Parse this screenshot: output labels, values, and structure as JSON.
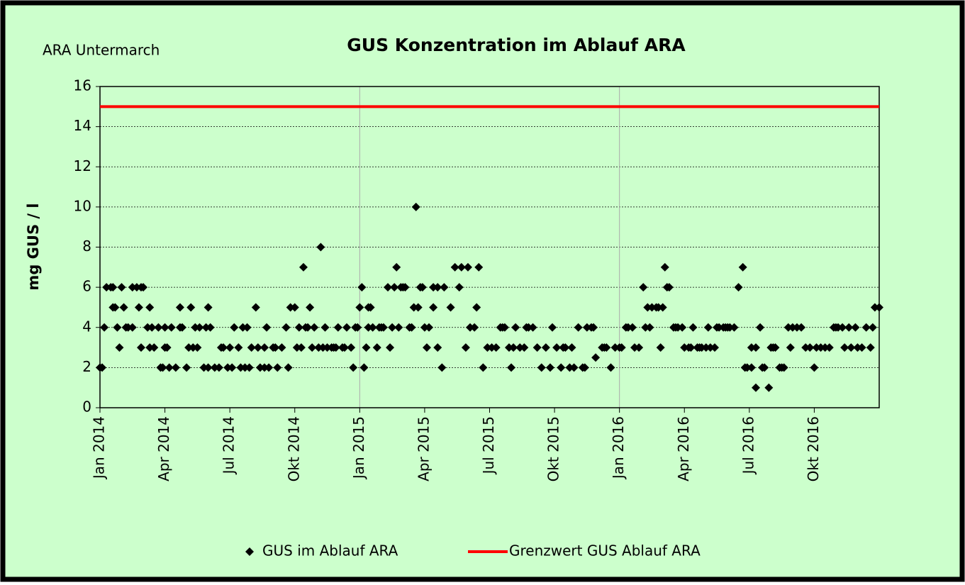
{
  "chart_data": {
    "type": "scatter",
    "title": "GUS Konzentration im Ablauf ARA",
    "subtitle": "ARA Untermarch",
    "y_label": "mg GUS / l",
    "xlim": [
      0,
      36
    ],
    "xticks": [
      {
        "value": 0,
        "label": "Jan 2014"
      },
      {
        "value": 3,
        "label": "Apr 2014"
      },
      {
        "value": 6,
        "label": "Jul 2014"
      },
      {
        "value": 9,
        "label": "Okt 2014"
      },
      {
        "value": 12,
        "label": "Jan 2015"
      },
      {
        "value": 15,
        "label": "Apr 2015"
      },
      {
        "value": 18,
        "label": "Jul 2015"
      },
      {
        "value": 21,
        "label": "Okt 2015"
      },
      {
        "value": 24,
        "label": "Jan 2016"
      },
      {
        "value": 27,
        "label": "Apr 2016"
      },
      {
        "value": 30,
        "label": "Jul 2016"
      },
      {
        "value": 33,
        "label": "Okt 2016"
      }
    ],
    "x_gridlines": [
      12,
      24
    ],
    "ylim": [
      0,
      16
    ],
    "yticks": [
      0,
      2,
      4,
      6,
      8,
      10,
      12,
      14,
      16
    ],
    "grid": true,
    "legend": "bottom",
    "series": [
      {
        "name": "GUS im Ablauf ARA",
        "color": "#000000",
        "marker": "diamond",
        "x": [
          0,
          0.1,
          0.2,
          0.3,
          0.5,
          0.6,
          0.6,
          0.7,
          0.8,
          0.9,
          1.0,
          1.1,
          1.2,
          1.3,
          1.5,
          1.5,
          1.7,
          1.8,
          1.9,
          1.9,
          2.0,
          2.2,
          2.3,
          2.3,
          2.4,
          2.5,
          2.7,
          2.8,
          2.9,
          3.0,
          3.0,
          3.1,
          3.2,
          3.3,
          3.5,
          3.7,
          3.7,
          3.8,
          4.0,
          4.1,
          4.2,
          4.3,
          4.4,
          4.5,
          4.6,
          4.8,
          4.9,
          5.0,
          5.0,
          5.1,
          5.3,
          5.5,
          5.6,
          5.7,
          5.9,
          6.0,
          6.1,
          6.2,
          6.4,
          6.5,
          6.6,
          6.7,
          6.8,
          6.9,
          7.0,
          7.2,
          7.3,
          7.4,
          7.6,
          7.6,
          7.7,
          7.8,
          8.0,
          8.1,
          8.2,
          8.4,
          8.6,
          8.7,
          8.8,
          9.0,
          9.1,
          9.2,
          9.3,
          9.4,
          9.5,
          9.6,
          9.7,
          9.8,
          9.9,
          10.1,
          10.2,
          10.3,
          10.4,
          10.5,
          10.7,
          10.8,
          10.9,
          11.0,
          11.2,
          11.3,
          11.4,
          11.6,
          11.7,
          11.8,
          11.9,
          12.0,
          12.1,
          12.2,
          12.3,
          12.4,
          12.4,
          12.5,
          12.6,
          12.8,
          12.9,
          13.0,
          13.1,
          13.3,
          13.4,
          13.5,
          13.6,
          13.7,
          13.8,
          13.9,
          14.0,
          14.1,
          14.3,
          14.4,
          14.5,
          14.6,
          14.7,
          14.8,
          14.9,
          15.0,
          15.1,
          15.2,
          15.4,
          15.4,
          15.6,
          15.6,
          15.8,
          15.9,
          16.2,
          16.4,
          16.6,
          16.7,
          16.9,
          17.0,
          17.1,
          17.3,
          17.4,
          17.5,
          17.7,
          17.9,
          18.1,
          18.3,
          18.5,
          18.6,
          18.7,
          18.9,
          19.0,
          19.1,
          19.2,
          19.4,
          19.6,
          19.7,
          19.8,
          20.0,
          20.2,
          20.4,
          20.6,
          20.8,
          20.9,
          21.1,
          21.3,
          21.4,
          21.5,
          21.7,
          21.8,
          21.9,
          22.1,
          22.3,
          22.4,
          22.5,
          22.7,
          22.8,
          22.9,
          23.2,
          23.3,
          23.4,
          23.6,
          23.8,
          24.0,
          24.1,
          24.3,
          24.4,
          24.6,
          24.7,
          24.9,
          25.1,
          25.2,
          25.3,
          25.4,
          25.5,
          25.7,
          25.8,
          25.9,
          26.0,
          26.1,
          26.2,
          26.3,
          26.5,
          26.6,
          26.7,
          26.9,
          27.0,
          27.2,
          27.3,
          27.4,
          27.6,
          27.7,
          27.8,
          28.0,
          28.1,
          28.2,
          28.4,
          28.5,
          28.6,
          28.8,
          28.9,
          29.0,
          29.1,
          29.3,
          29.5,
          29.7,
          29.8,
          29.9,
          30.1,
          30.1,
          30.3,
          30.3,
          30.5,
          30.6,
          30.7,
          30.9,
          31.0,
          31.1,
          31.2,
          31.4,
          31.5,
          31.6,
          31.8,
          31.9,
          32.0,
          32.2,
          32.4,
          32.6,
          32.8,
          33.0,
          33.1,
          33.3,
          33.5,
          33.7,
          33.9,
          34.0,
          34.1,
          34.3,
          34.4,
          34.6,
          34.7,
          34.9,
          35.0,
          35.2,
          35.4,
          35.6,
          35.7,
          35.8,
          36.0
        ],
        "values": [
          2,
          2,
          4,
          6,
          6,
          5,
          6,
          5,
          4,
          3,
          6,
          5,
          4,
          4,
          6,
          4,
          6,
          5,
          6,
          3,
          6,
          4,
          5,
          3,
          4,
          3,
          4,
          2,
          2,
          3,
          4,
          3,
          2,
          4,
          2,
          5,
          4,
          4,
          2,
          3,
          5,
          3,
          4,
          3,
          4,
          2,
          4,
          5,
          2,
          4,
          2,
          2,
          3,
          3,
          2,
          3,
          2,
          4,
          3,
          2,
          4,
          2,
          4,
          2,
          3,
          5,
          3,
          2,
          3,
          2,
          4,
          2,
          3,
          3,
          2,
          3,
          4,
          2,
          5,
          5,
          3,
          4,
          3,
          7,
          4,
          4,
          5,
          3,
          4,
          3,
          8,
          3,
          4,
          3,
          3,
          3,
          3,
          4,
          3,
          3,
          4,
          3,
          2,
          4,
          4,
          5,
          6,
          2,
          3,
          5,
          4,
          5,
          4,
          3,
          4,
          4,
          4,
          6,
          3,
          4,
          6,
          7,
          4,
          6,
          6,
          6,
          4,
          4,
          5,
          10,
          5,
          6,
          6,
          4,
          3,
          4,
          6,
          5,
          6,
          3,
          2,
          6,
          5,
          7,
          6,
          7,
          3,
          7,
          4,
          4,
          5,
          7,
          2,
          3,
          3,
          3,
          4,
          4,
          4,
          3,
          2,
          3,
          4,
          3,
          3,
          4,
          4,
          4,
          3,
          2,
          3,
          2,
          4,
          3,
          2,
          3,
          3,
          2,
          3,
          2,
          4,
          2,
          2,
          4,
          4,
          4,
          2.5,
          3,
          3,
          3,
          2,
          3,
          3,
          3,
          4,
          4,
          4,
          3,
          3,
          6,
          4,
          5,
          4,
          5,
          5,
          5,
          3,
          5,
          7,
          6,
          6,
          4,
          4,
          4,
          4,
          3,
          3,
          3,
          4,
          3,
          3,
          3,
          3,
          4,
          3,
          3,
          4,
          4,
          4,
          4,
          4,
          4,
          4,
          6,
          7,
          2,
          2,
          2,
          3,
          1,
          3,
          4,
          2,
          2,
          1,
          3,
          3,
          3,
          2,
          2,
          2,
          4,
          3,
          4,
          4,
          4,
          3,
          3,
          2,
          3,
          3,
          3,
          3,
          4,
          4,
          4,
          4,
          3,
          4,
          3,
          4,
          3,
          3,
          4,
          3,
          4,
          5,
          5
        ]
      },
      {
        "name": "Grenzwert GUS Ablauf ARA",
        "color": "#ff0000",
        "marker": "line",
        "x": [
          0,
          36
        ],
        "values": [
          15,
          15
        ]
      }
    ]
  }
}
